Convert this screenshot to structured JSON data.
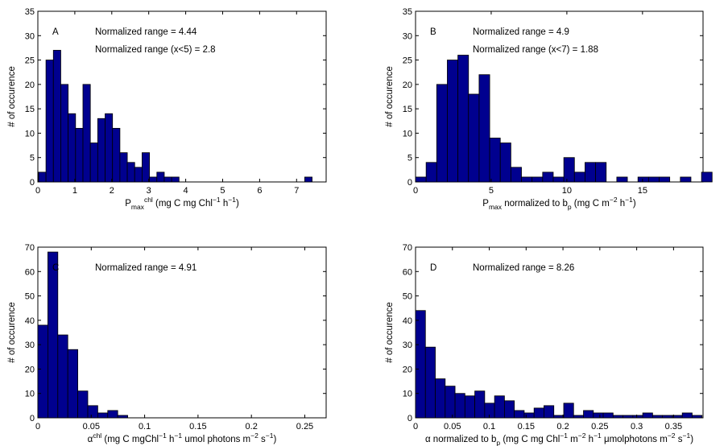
{
  "chart_data": [
    {
      "type": "bar",
      "panel": "A",
      "annotations": [
        "Normalized range = 4.44",
        "Normalized range (x<5) = 2.8"
      ],
      "xlabel": {
        "base": "P",
        "sub": "max",
        "sup": "chl",
        "rest": " (mg C mg Chl",
        "sup2": "−1",
        "rest2": " h",
        "sup3": "−1",
        "end": ")"
      },
      "ylabel": "# of occurence",
      "xlim": [
        0,
        7.8
      ],
      "ylim": [
        0,
        35
      ],
      "xticks": [
        0,
        1,
        2,
        3,
        4,
        5,
        6,
        7
      ],
      "yticks": [
        0,
        5,
        10,
        15,
        20,
        25,
        30,
        35
      ],
      "bin_start": 0.02,
      "bin_width": 0.2,
      "values": [
        2,
        25,
        27,
        20,
        14,
        11,
        20,
        8,
        13,
        14,
        11,
        6,
        4,
        3,
        6,
        1,
        2,
        1,
        1,
        0,
        0,
        0,
        0,
        0,
        0,
        0,
        0,
        0,
        0,
        0,
        0,
        0,
        0,
        0,
        0,
        0,
        1,
        0
      ]
    },
    {
      "type": "bar",
      "panel": "B",
      "annotations": [
        "Normalized range = 4.9",
        "Normalized range (x<7) = 1.88"
      ],
      "xlabel": {
        "base": "P",
        "sub": "max",
        "rest": " normalized to b",
        "sub2": "p",
        "rest2": " (mg C m",
        "sup2": "−2",
        "rest3": " h",
        "sup3": "−1",
        "end": ")"
      },
      "ylabel": "# of occurence",
      "xlim": [
        0,
        19
      ],
      "ylim": [
        0,
        35
      ],
      "xticks": [
        0,
        5,
        10,
        15
      ],
      "yticks": [
        0,
        5,
        10,
        15,
        20,
        25,
        30,
        35
      ],
      "bin_start": 0,
      "bin_width": 0.7,
      "values": [
        1,
        4,
        20,
        25,
        26,
        18,
        22,
        9,
        8,
        3,
        1,
        1,
        2,
        1,
        5,
        2,
        4,
        4,
        0,
        1,
        0,
        1,
        1,
        1,
        0,
        1,
        0,
        2
      ]
    },
    {
      "type": "bar",
      "panel": "C",
      "annotations": [
        "Normalized range = 4.91"
      ],
      "xlabel": {
        "base": "α",
        "sup": "chl",
        "rest": " (mg C mgChl",
        "sup2": "−1",
        "rest2": " h",
        "sup3": "−1",
        "rest3": " umol photons m",
        "sup4": "−2",
        "rest4": " s",
        "sup5": "−1",
        "end": ")"
      },
      "ylabel": "# of occurence",
      "xlim": [
        0,
        0.27
      ],
      "ylim": [
        0,
        70
      ],
      "xticks": [
        "0",
        "0.05",
        "0.1",
        "0.15",
        "0.2",
        "0.25"
      ],
      "yticks": [
        0,
        10,
        20,
        30,
        40,
        50,
        60,
        70
      ],
      "bin_start": 0,
      "bin_width": 0.00935,
      "values": [
        38,
        68,
        34,
        28,
        11,
        5,
        2,
        3,
        1,
        0,
        0,
        0,
        0,
        0,
        0,
        0,
        0,
        0,
        0,
        0,
        0,
        0,
        0,
        0,
        0,
        0,
        0,
        0,
        0
      ]
    },
    {
      "type": "bar",
      "panel": "D",
      "annotations": [
        "Normalized range = 8.26"
      ],
      "xlabel": {
        "base": "α normalized to b",
        "sub": "p",
        "rest": " (mg C mg Chl",
        "sup2": "−1",
        "rest2": " m",
        "sup3": "−2",
        "rest3": " h",
        "sup4": "−1",
        "rest4": " μmolphotons m",
        "sup5": "−2",
        "rest5": " s",
        "sup6": "−1",
        "end": ")"
      },
      "ylabel": "# of occurence",
      "xlim": [
        0,
        0.39
      ],
      "ylim": [
        0,
        70
      ],
      "xticks": [
        "0",
        "0.05",
        "0.1",
        "0.15",
        "0.2",
        "0.25",
        "0.3",
        "0.35"
      ],
      "yticks": [
        0,
        10,
        20,
        30,
        40,
        50,
        60,
        70
      ],
      "bin_start": 0,
      "bin_width": 0.0134,
      "values": [
        44,
        29,
        16,
        13,
        10,
        9,
        11,
        6,
        9,
        7,
        3,
        2,
        4,
        5,
        1,
        6,
        1,
        3,
        2,
        2,
        1,
        1,
        1,
        2,
        1,
        1,
        1,
        2,
        1
      ]
    }
  ]
}
